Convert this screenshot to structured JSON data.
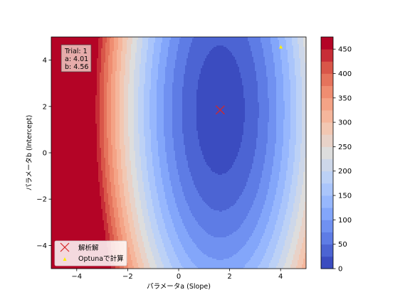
{
  "chart_data": {
    "type": "contour",
    "xlabel": "パラメータa (Slope)",
    "ylabel": "パラメータb (Intercept)",
    "xlim": [
      -5,
      5
    ],
    "ylim": [
      -5,
      5
    ],
    "x_ticks": [
      -4,
      -2,
      0,
      2,
      4
    ],
    "y_ticks": [
      -4,
      -2,
      0,
      2,
      4
    ],
    "x_tick_labels": [
      "−4",
      "−2",
      "0",
      "2",
      "4"
    ],
    "y_tick_labels": [
      "−4",
      "−2",
      "0",
      "2",
      "4"
    ],
    "surface": {
      "minimum": 8,
      "a_opt": 1.63,
      "b_opt": 1.85,
      "coef_a": 18.6,
      "coef_b": 2.2
    },
    "levels": [
      0,
      25,
      50,
      75,
      100,
      125,
      150,
      175,
      200,
      225,
      250,
      275,
      300,
      325,
      350,
      375,
      400,
      425,
      450,
      475
    ],
    "colorbar_ticks": [
      0,
      50,
      100,
      150,
      200,
      250,
      300,
      350,
      400,
      450
    ],
    "colorbar_tick_labels": [
      "0",
      "50",
      "100",
      "150",
      "200",
      "250",
      "300",
      "350",
      "400",
      "450"
    ],
    "colormap": "coolwarm",
    "analytic_solution": {
      "a": 1.63,
      "b": 1.85,
      "marker": "x",
      "color": "#d62728"
    },
    "optuna_points": [
      {
        "a": 4.01,
        "b": 4.56,
        "color": "#ffee00"
      }
    ],
    "info_box": [
      "Trial: 1",
      "a: 4.01",
      "b: 4.56"
    ],
    "legend": {
      "placement": "lower-left",
      "entries": [
        {
          "label": "解析解",
          "marker": "x",
          "color": "#d62728"
        },
        {
          "label": "Optunaで計算",
          "marker": "triangle",
          "color": "#ffee00"
        }
      ]
    }
  }
}
